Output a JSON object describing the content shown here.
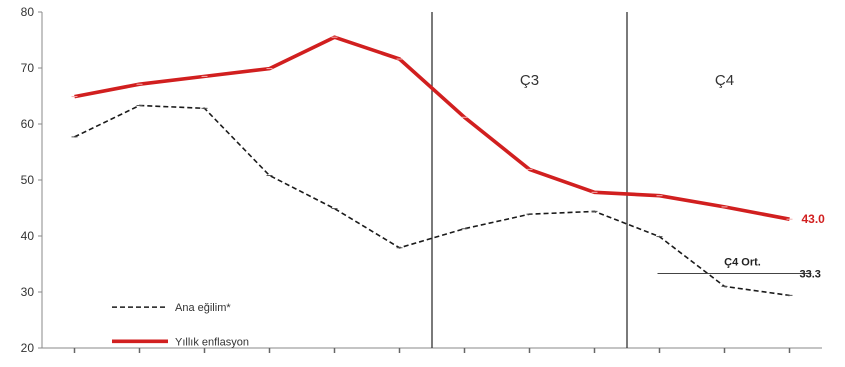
{
  "chart_data": {
    "type": "line",
    "ylim": [
      20,
      80
    ],
    "yticks": [
      20,
      30,
      40,
      50,
      60,
      70,
      80
    ],
    "x_count": 12,
    "grid": false,
    "series": [
      {
        "key": "yillik",
        "name": "Yıllık enflasyon",
        "color": "#d11f1f",
        "style": "solid",
        "values": [
          64.9,
          67.1,
          68.5,
          69.9,
          75.5,
          71.6,
          61.2,
          51.9,
          47.8,
          47.2,
          45.2,
          43.0
        ]
      },
      {
        "key": "ana",
        "name": "Ana eğilim*",
        "color": "#1a1a1a",
        "style": "dashed",
        "values": [
          57.7,
          63.3,
          62.8,
          50.8,
          44.9,
          37.9,
          41.3,
          43.9,
          44.4,
          39.9,
          31.0,
          29.4
        ]
      }
    ],
    "periods": [
      {
        "label": "Ç3",
        "start_index": 5.5,
        "end_index": 8.5
      },
      {
        "label": "Ç4",
        "start_index": 8.5,
        "end_index": 11.5
      }
    ],
    "end_label": {
      "text": "43.0",
      "value": 43.0,
      "color": "#d11f1f"
    },
    "reference": {
      "label": "Ç4 Ort.",
      "value": 33.3,
      "value_text": "33.3",
      "from_index": 9.0,
      "to_index": 11.0
    },
    "legend_position": "bottom-left"
  }
}
